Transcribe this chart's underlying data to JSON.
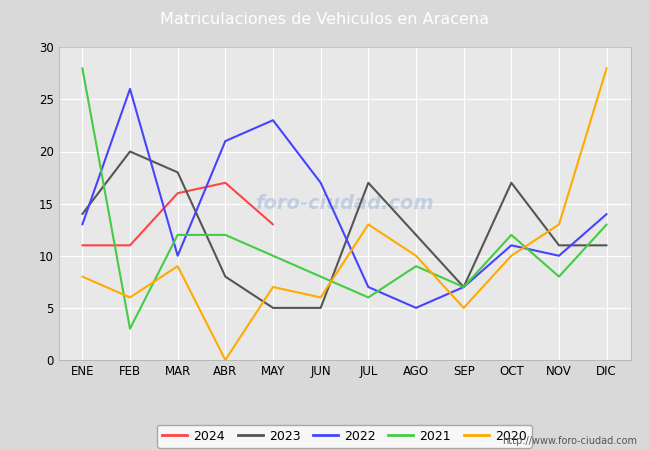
{
  "title": "Matriculaciones de Vehiculos en Aracena",
  "title_color": "#ffffff",
  "title_bg_color": "#4d7ebf",
  "months": [
    "ENE",
    "FEB",
    "MAR",
    "ABR",
    "MAY",
    "JUN",
    "JUL",
    "AGO",
    "SEP",
    "OCT",
    "NOV",
    "DIC"
  ],
  "series": {
    "2024": {
      "color": "#ff4444",
      "data": [
        11,
        11,
        16,
        17,
        13,
        null,
        null,
        null,
        null,
        null,
        null,
        null
      ]
    },
    "2023": {
      "color": "#555555",
      "data": [
        14,
        20,
        18,
        8,
        5,
        5,
        17,
        12,
        7,
        17,
        11,
        11
      ]
    },
    "2022": {
      "color": "#4444ff",
      "data": [
        13,
        26,
        10,
        21,
        23,
        17,
        7,
        5,
        7,
        11,
        10,
        14
      ]
    },
    "2021": {
      "color": "#44cc44",
      "data": [
        28,
        3,
        12,
        12,
        10,
        8,
        6,
        9,
        7,
        12,
        8,
        13
      ]
    },
    "2020": {
      "color": "#ffaa00",
      "data": [
        8,
        6,
        9,
        0,
        7,
        6,
        13,
        10,
        5,
        10,
        13,
        28
      ]
    }
  },
  "ylim": [
    0,
    30
  ],
  "yticks": [
    0,
    5,
    10,
    15,
    20,
    25,
    30
  ],
  "bg_color": "#d9d9d9",
  "plot_bg_color": "#e8e8e8",
  "grid_color": "#ffffff",
  "url": "http://www.foro-ciudad.com"
}
